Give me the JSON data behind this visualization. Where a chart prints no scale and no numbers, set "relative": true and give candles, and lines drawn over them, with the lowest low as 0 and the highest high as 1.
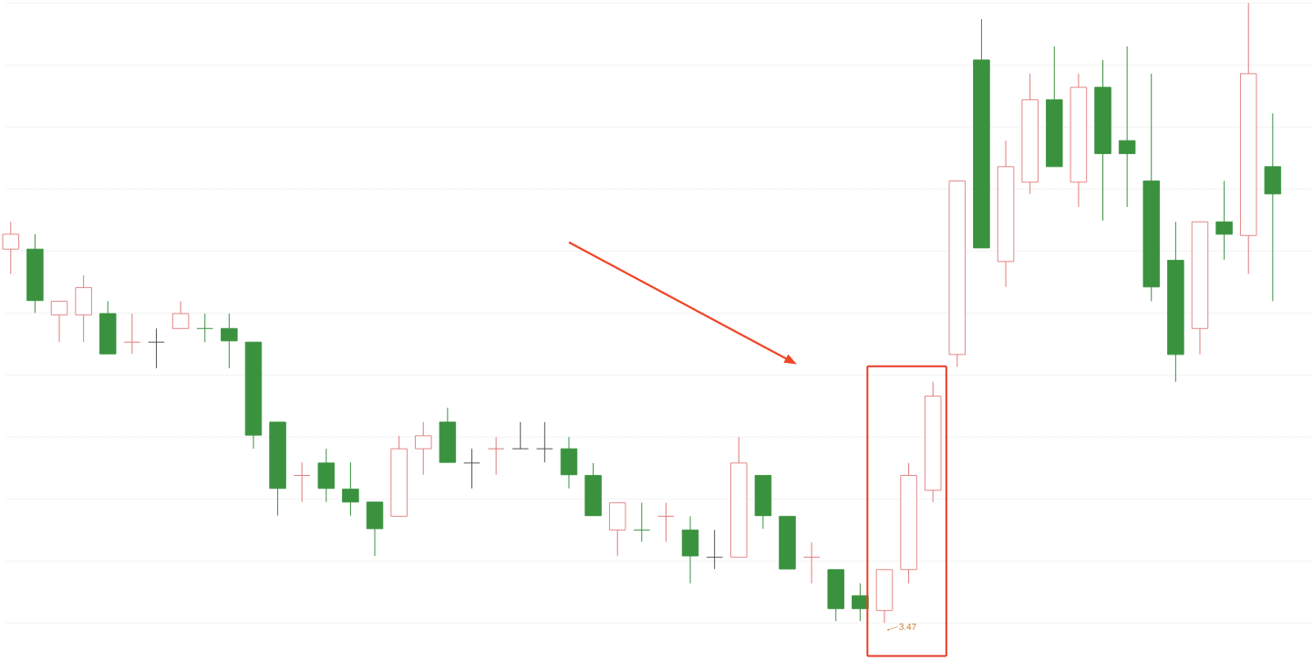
{
  "chart_data": {
    "type": "candlestick",
    "relative": true,
    "grid": "y",
    "categories": [
      null,
      null,
      null,
      null,
      null,
      null,
      null,
      null,
      null,
      null,
      null,
      null,
      null,
      null,
      null,
      null,
      null,
      null,
      null,
      null,
      null,
      null,
      null,
      null,
      null,
      null,
      null,
      null,
      null,
      null,
      null,
      null,
      null,
      null,
      null,
      null,
      null,
      null,
      null,
      null,
      null,
      null,
      null,
      null,
      null,
      null,
      null,
      null,
      null,
      null,
      null,
      null,
      null
    ],
    "ohlc": [
      [
        0.603,
        0.647,
        0.563,
        0.627
      ],
      [
        0.603,
        0.627,
        0.5,
        0.52
      ],
      [
        0.497,
        0.519,
        0.453,
        0.519
      ],
      [
        0.497,
        0.561,
        0.453,
        0.541
      ],
      [
        0.499,
        0.519,
        0.434,
        0.434
      ],
      [
        0.453,
        0.499,
        0.434,
        0.453
      ],
      [
        0.453,
        0.475,
        0.411,
        0.453
      ],
      [
        0.475,
        0.519,
        0.475,
        0.499
      ],
      [
        0.475,
        0.499,
        0.453,
        0.475
      ],
      [
        0.475,
        0.499,
        0.411,
        0.455
      ],
      [
        0.453,
        0.453,
        0.281,
        0.303
      ],
      [
        0.324,
        0.324,
        0.173,
        0.217
      ],
      [
        0.238,
        0.259,
        0.195,
        0.238
      ],
      [
        0.258,
        0.281,
        0.195,
        0.217
      ],
      [
        0.216,
        0.259,
        0.173,
        0.195
      ],
      [
        0.195,
        0.195,
        0.108,
        0.152
      ],
      [
        0.172,
        0.302,
        0.172,
        0.281
      ],
      [
        0.281,
        0.324,
        0.239,
        0.302
      ],
      [
        0.324,
        0.347,
        0.259,
        0.259
      ],
      [
        0.258,
        0.281,
        0.217,
        0.258
      ],
      [
        0.281,
        0.3,
        0.239,
        0.281
      ],
      [
        0.281,
        0.324,
        0.281,
        0.281
      ],
      [
        0.281,
        0.324,
        0.259,
        0.281
      ],
      [
        0.281,
        0.3,
        0.217,
        0.239
      ],
      [
        0.238,
        0.258,
        0.173,
        0.173
      ],
      [
        0.15,
        0.194,
        0.108,
        0.194
      ],
      [
        0.15,
        0.194,
        0.131,
        0.15
      ],
      [
        0.172,
        0.194,
        0.131,
        0.172
      ],
      [
        0.15,
        0.172,
        0.064,
        0.108
      ],
      [
        0.106,
        0.15,
        0.087,
        0.106
      ],
      [
        0.106,
        0.3,
        0.106,
        0.258
      ],
      [
        0.238,
        0.238,
        0.152,
        0.173
      ],
      [
        0.172,
        0.172,
        0.087,
        0.087
      ],
      [
        0.106,
        0.13,
        0.064,
        0.106
      ],
      [
        0.086,
        0.086,
        0.003,
        0.023
      ],
      [
        0.044,
        0.064,
        0.003,
        0.023
      ],
      [
        0.02,
        0.086,
        0,
        0.086
      ],
      [
        0.086,
        0.258,
        0.064,
        0.238
      ],
      [
        0.214,
        0.389,
        0.195,
        0.366
      ],
      [
        0.433,
        0.713,
        0.413,
        0.713
      ],
      [
        0.908,
        0.974,
        0.605,
        0.605
      ],
      [
        0.583,
        0.778,
        0.542,
        0.736
      ],
      [
        0.711,
        0.886,
        0.692,
        0.844
      ],
      [
        0.844,
        0.93,
        0.736,
        0.736
      ],
      [
        0.711,
        0.886,
        0.671,
        0.864
      ],
      [
        0.864,
        0.908,
        0.649,
        0.757
      ],
      [
        0.778,
        0.93,
        0.671,
        0.757
      ],
      [
        0.713,
        0.886,
        0.519,
        0.542
      ],
      [
        0.585,
        0.647,
        0.389,
        0.433
      ],
      [
        0.475,
        0.647,
        0.433,
        0.647
      ],
      [
        0.647,
        0.713,
        0.586,
        0.627
      ],
      [
        0.625,
        1,
        0.563,
        0.886
      ],
      [
        0.736,
        0.822,
        0.519,
        0.692
      ]
    ],
    "colors": [
      "#e07a7a",
      "#3a923f",
      "#e07a7a",
      "#e07a7a",
      "#3a923f",
      "#e07a7a",
      "#555555",
      "#e07a7a",
      "#3a923f",
      "#3a923f",
      "#3a923f",
      "#3a923f",
      "#e07a7a",
      "#3a923f",
      "#3a923f",
      "#3a923f",
      "#e07a7a",
      "#e07a7a",
      "#3a923f",
      "#555555",
      "#e07a7a",
      "#555555",
      "#555555",
      "#3a923f",
      "#3a923f",
      "#e07a7a",
      "#3a923f",
      "#e07a7a",
      "#3a923f",
      "#555555",
      "#e07a7a",
      "#3a923f",
      "#3a923f",
      "#e07a7a",
      "#3a923f",
      "#3a923f",
      "#e07a7a",
      "#e07a7a",
      "#e07a7a",
      "#e07a7a",
      "#3a923f",
      "#e07a7a",
      "#e07a7a",
      "#3a923f",
      "#e07a7a",
      "#3a923f",
      "#3a923f",
      "#3a923f",
      "#3a923f",
      "#e07a7a",
      "#3a923f",
      "#e07a7a",
      "#3a923f"
    ],
    "annotations": [
      "3.47"
    ]
  }
}
